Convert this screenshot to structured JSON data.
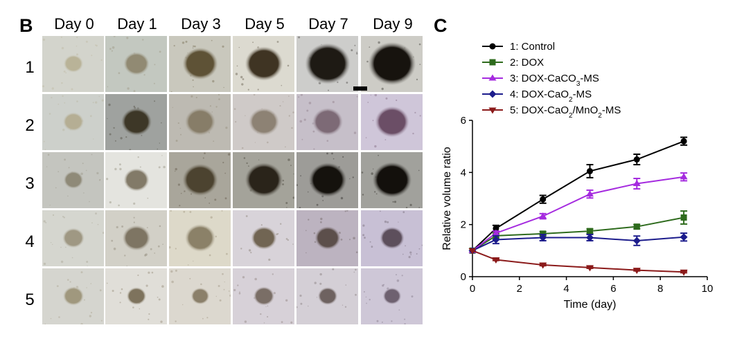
{
  "panel_b": {
    "letter": "B",
    "days": [
      "Day 0",
      "Day 1",
      "Day 3",
      "Day 5",
      "Day 7",
      "Day 9"
    ],
    "rows": [
      "1",
      "2",
      "3",
      "4",
      "5"
    ]
  },
  "panel_c": {
    "letter": "C"
  },
  "chart_data": {
    "type": "line",
    "xlabel": "Time (day)",
    "ylabel": "Relative volume ratio",
    "xlim": [
      0,
      10
    ],
    "ylim": [
      0,
      6
    ],
    "xticks": [
      0,
      2,
      4,
      6,
      8,
      10
    ],
    "yticks": [
      0,
      2,
      4,
      6
    ],
    "grid": false,
    "legend_position": "top-left",
    "x": [
      0,
      1,
      3,
      5,
      7,
      9
    ],
    "series": [
      {
        "name": "1: Control",
        "color": "#000000",
        "marker": "circle",
        "values": [
          1.0,
          1.85,
          2.97,
          4.05,
          4.5,
          5.2
        ],
        "errors": [
          0,
          0.12,
          0.15,
          0.25,
          0.2,
          0.15
        ]
      },
      {
        "name": "2: DOX",
        "color": "#2e6b1d",
        "marker": "square",
        "values": [
          1.0,
          1.57,
          1.65,
          1.75,
          1.92,
          2.27
        ],
        "errors": [
          0,
          0.08,
          0.08,
          0.08,
          0.08,
          0.25
        ]
      },
      {
        "name": "3: DOX-CaCO3-MS",
        "color": "#a52bdf",
        "marker": "triangle-up",
        "values": [
          1.0,
          1.67,
          2.32,
          3.17,
          3.57,
          3.83
        ],
        "errors": [
          0,
          0.08,
          0.1,
          0.15,
          0.2,
          0.15
        ]
      },
      {
        "name": "4: DOX-CaO2-MS",
        "color": "#1c1c8c",
        "marker": "diamond",
        "values": [
          1.0,
          1.42,
          1.5,
          1.5,
          1.38,
          1.52
        ],
        "errors": [
          0,
          0.15,
          0.12,
          0.12,
          0.18,
          0.15
        ]
      },
      {
        "name": "5: DOX-CaO2/MnO2-MS",
        "color": "#8b1a1a",
        "marker": "triangle-down",
        "values": [
          1.0,
          0.65,
          0.45,
          0.35,
          0.25,
          0.18
        ],
        "errors": [
          0,
          0.03,
          0.03,
          0.03,
          0.03,
          0.03
        ]
      }
    ]
  },
  "legend_parts": [
    [
      {
        "t": "1: Control"
      }
    ],
    [
      {
        "t": "2: DOX"
      }
    ],
    [
      {
        "t": "3: DOX-CaCO"
      },
      {
        "t": "3",
        "sub": true
      },
      {
        "t": "-MS"
      }
    ],
    [
      {
        "t": "4: DOX-CaO"
      },
      {
        "t": "2",
        "sub": true
      },
      {
        "t": "-MS"
      }
    ],
    [
      {
        "t": "5: DOX-CaO"
      },
      {
        "t": "2",
        "sub": true
      },
      {
        "t": "/MnO"
      },
      {
        "t": "2",
        "sub": true
      },
      {
        "t": "-MS"
      }
    ]
  ],
  "spheroid_grid": [
    [
      {
        "bg": "#d3d4cc",
        "body": "#b9b398",
        "size": 0.32,
        "dark": 0.1
      },
      {
        "bg": "#c3c8c0",
        "body": "#918a73",
        "size": 0.42,
        "dark": 0.15
      },
      {
        "bg": "#c9c8bd",
        "body": "#5e5236",
        "size": 0.58,
        "dark": 0.35
      },
      {
        "bg": "#dcdad0",
        "body": "#3f3423",
        "size": 0.62,
        "dark": 0.55
      },
      {
        "bg": "#cdcdcb",
        "body": "#1e1a14",
        "size": 0.74,
        "dark": 0.8
      },
      {
        "bg": "#cdccc6",
        "body": "#17130e",
        "size": 0.78,
        "dark": 0.9
      }
    ],
    [
      {
        "bg": "#cdd0cb",
        "body": "#b5ae94",
        "size": 0.34,
        "dark": 0.1
      },
      {
        "bg": "#9fa29f",
        "body": "#3d3727",
        "size": 0.5,
        "dark": 0.45
      },
      {
        "bg": "#bdbab2",
        "body": "#877d68",
        "size": 0.5,
        "dark": 0.2
      },
      {
        "bg": "#cfcac8",
        "body": "#8d8274",
        "size": 0.5,
        "dark": 0.2
      },
      {
        "bg": "#c6bfc9",
        "body": "#7d6a76",
        "size": 0.5,
        "dark": 0.2
      },
      {
        "bg": "#cfc6d9",
        "body": "#6b4e66",
        "size": 0.56,
        "dark": 0.3
      }
    ],
    [
      {
        "bg": "#c4c5bf",
        "body": "#8f8a78",
        "size": 0.32,
        "dark": 0.15
      },
      {
        "bg": "#e4e4df",
        "body": "#827a68",
        "size": 0.42,
        "dark": 0.2
      },
      {
        "bg": "#a9a69b",
        "body": "#4c4330",
        "size": 0.58,
        "dark": 0.4
      },
      {
        "bg": "#a4a39a",
        "body": "#2a241a",
        "size": 0.62,
        "dark": 0.65
      },
      {
        "bg": "#9d9c98",
        "body": "#15120d",
        "size": 0.62,
        "dark": 0.9
      },
      {
        "bg": "#a1a19c",
        "body": "#13100c",
        "size": 0.64,
        "dark": 0.9
      }
    ],
    [
      {
        "bg": "#d5d6cf",
        "body": "#9f9883",
        "size": 0.36,
        "dark": 0.12
      },
      {
        "bg": "#d2d0c7",
        "body": "#7e7563",
        "size": 0.46,
        "dark": 0.2
      },
      {
        "bg": "#ddd9c9",
        "body": "#8b8168",
        "size": 0.5,
        "dark": 0.2
      },
      {
        "bg": "#d8d3d9",
        "body": "#716553",
        "size": 0.42,
        "dark": 0.25
      },
      {
        "bg": "#bcb3c0",
        "body": "#5c4f4b",
        "size": 0.42,
        "dark": 0.3
      },
      {
        "bg": "#c8c0d5",
        "body": "#5d4f5c",
        "size": 0.4,
        "dark": 0.3
      }
    ],
    [
      {
        "bg": "#d5d5cf",
        "body": "#a0987e",
        "size": 0.34,
        "dark": 0.1
      },
      {
        "bg": "#e0ded8",
        "body": "#7e735d",
        "size": 0.32,
        "dark": 0.2
      },
      {
        "bg": "#dcd8cf",
        "body": "#8b806a",
        "size": 0.3,
        "dark": 0.2
      },
      {
        "bg": "#d7d1d8",
        "body": "#7a6e66",
        "size": 0.34,
        "dark": 0.2
      },
      {
        "bg": "#d4cfd6",
        "body": "#6e6260",
        "size": 0.32,
        "dark": 0.2
      },
      {
        "bg": "#cec7d7",
        "body": "#6e6170",
        "size": 0.3,
        "dark": 0.2
      }
    ]
  ]
}
